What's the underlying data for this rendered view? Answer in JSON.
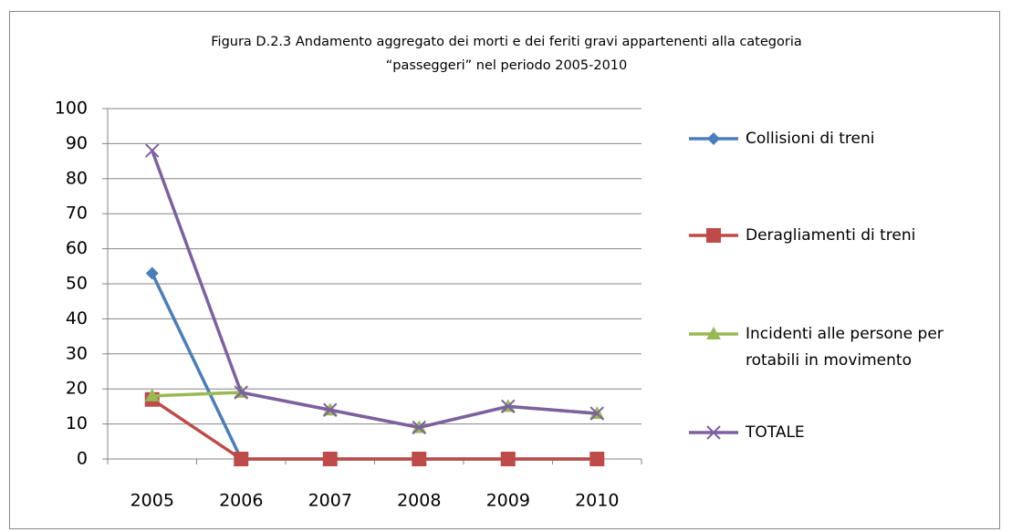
{
  "chart_data": {
    "type": "line",
    "title": [
      "Figura D.2.3 Andamento aggregato  dei morti e dei feriti gravi appartenenti alla categoria",
      "“passeggeri” nel periodo 2005-2010"
    ],
    "categories": [
      "2005",
      "2006",
      "2007",
      "2008",
      "2009",
      "2010"
    ],
    "series": [
      {
        "name": "Collisioni di treni",
        "color": "#4a7ebb",
        "marker": "diamond",
        "values": [
          53,
          0,
          0,
          0,
          0,
          0
        ]
      },
      {
        "name": "Deragliamenti di treni",
        "color": "#be4b48",
        "marker": "square",
        "values": [
          17,
          0,
          0,
          0,
          0,
          0
        ]
      },
      {
        "name": "Incidenti alle persone per rotabili in movimento",
        "color": "#98b954",
        "marker": "triangle",
        "values": [
          18,
          19,
          14,
          9,
          15,
          13
        ]
      },
      {
        "name": "TOTALE",
        "color": "#7d60a0",
        "marker": "x",
        "values": [
          88,
          19,
          14,
          9,
          15,
          13
        ]
      }
    ],
    "ylim": [
      0,
      100
    ],
    "yticks": [
      0,
      10,
      20,
      30,
      40,
      50,
      60,
      70,
      80,
      90,
      100
    ],
    "grid": true,
    "legend": "right"
  }
}
